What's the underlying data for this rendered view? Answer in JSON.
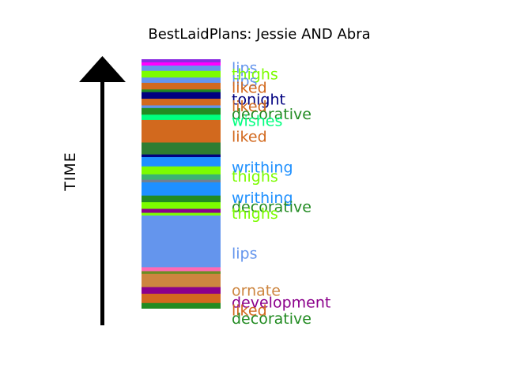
{
  "chart_data": {
    "type": "bar",
    "title": "BestLaidPlans: Jessie AND Abra",
    "ylabel": "TIME",
    "orientation": "vertical-stacked-timeline",
    "total": 100,
    "segments": [
      {
        "word": "",
        "value": 1.2,
        "color": "#8a2be2"
      },
      {
        "word": "",
        "value": 1.2,
        "color": "#ff00ff"
      },
      {
        "word": "lips",
        "value": 2.0,
        "color": "#6495ed"
      },
      {
        "word": "thighs",
        "value": 2.5,
        "color": "#7cfc00"
      },
      {
        "word": "lips",
        "value": 2.0,
        "color": "#6495ed"
      },
      {
        "word": "liked",
        "value": 2.5,
        "color": "#d2691e"
      },
      {
        "word": "",
        "value": 1.0,
        "color": "#228b22"
      },
      {
        "word": "tonight",
        "value": 2.5,
        "color": "#000080"
      },
      {
        "word": "liked",
        "value": 2.5,
        "color": "#d2691e"
      },
      {
        "word": "",
        "value": 1.0,
        "color": "#6495ed"
      },
      {
        "word": "decorative",
        "value": 2.5,
        "color": "#228b22"
      },
      {
        "word": "wishes",
        "value": 2.0,
        "color": "#00ff7f"
      },
      {
        "word": "liked",
        "value": 8.5,
        "color": "#d2691e"
      },
      {
        "word": "",
        "value": 4.5,
        "color": "#2e7d32"
      },
      {
        "word": "",
        "value": 1.0,
        "color": "#000080"
      },
      {
        "word": "writhing",
        "value": 3.5,
        "color": "#1e90ff"
      },
      {
        "word": "thighs",
        "value": 3.0,
        "color": "#7cfc00"
      },
      {
        "word": "",
        "value": 2.0,
        "color": "#3cb371"
      },
      {
        "word": "",
        "value": 1.0,
        "color": "#708090"
      },
      {
        "word": "writhing",
        "value": 5.0,
        "color": "#1e90ff"
      },
      {
        "word": "decorative",
        "value": 2.5,
        "color": "#228b22"
      },
      {
        "word": "thighs",
        "value": 2.5,
        "color": "#7cfc00"
      },
      {
        "word": "",
        "value": 1.5,
        "color": "#8b008b"
      },
      {
        "word": "",
        "value": 1.0,
        "color": "#7cfc00"
      },
      {
        "word": "",
        "value": 1.0,
        "color": "#6495ed"
      },
      {
        "word": "lips",
        "value": 18.5,
        "color": "#6495ed"
      },
      {
        "word": "",
        "value": 1.5,
        "color": "#ff69b4"
      },
      {
        "word": "",
        "value": 1.0,
        "color": "#6b8e23"
      },
      {
        "word": "ornate",
        "value": 5.0,
        "color": "#cd853f"
      },
      {
        "word": "development",
        "value": 2.5,
        "color": "#8b008b"
      },
      {
        "word": "liked",
        "value": 3.5,
        "color": "#d2691e"
      },
      {
        "word": "decorative",
        "value": 2.0,
        "color": "#228b22"
      }
    ],
    "labels": [
      {
        "text": "lips",
        "pos": 3.5,
        "color": "#6495ed"
      },
      {
        "text": "thighs",
        "pos": 6.0,
        "color": "#7cfc00"
      },
      {
        "text": "lips",
        "pos": 8.5,
        "color": "#6495ed"
      },
      {
        "text": "liked",
        "pos": 11.0,
        "color": "#d2691e"
      },
      {
        "text": "tonight",
        "pos": 15.5,
        "color": "#000080"
      },
      {
        "text": "liked",
        "pos": 18.0,
        "color": "#d2691e"
      },
      {
        "text": "decorative",
        "pos": 21.0,
        "color": "#228b22"
      },
      {
        "text": "wishes",
        "pos": 23.5,
        "color": "#00ff7f"
      },
      {
        "text": "liked",
        "pos": 29.5,
        "color": "#d2691e"
      },
      {
        "text": "writhing",
        "pos": 41.0,
        "color": "#1e90ff"
      },
      {
        "text": "thighs",
        "pos": 44.5,
        "color": "#7cfc00"
      },
      {
        "text": "writhing",
        "pos": 52.5,
        "color": "#1e90ff"
      },
      {
        "text": "decorative",
        "pos": 56.0,
        "color": "#228b22"
      },
      {
        "text": "thighs",
        "pos": 58.5,
        "color": "#7cfc00"
      },
      {
        "text": "lips",
        "pos": 73.5,
        "color": "#6495ed"
      },
      {
        "text": "ornate",
        "pos": 87.5,
        "color": "#cd853f"
      },
      {
        "text": "development",
        "pos": 92.0,
        "color": "#8b008b"
      },
      {
        "text": "liked",
        "pos": 95.0,
        "color": "#d2691e"
      },
      {
        "text": "decorative",
        "pos": 98.0,
        "color": "#228b22"
      }
    ]
  }
}
